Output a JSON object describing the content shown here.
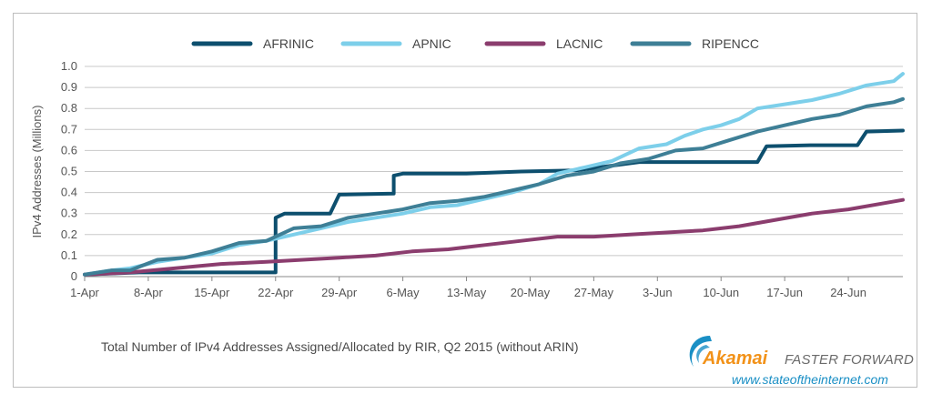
{
  "chart_data": {
    "type": "line",
    "ylabel": "IPv4 Addresses (Millions)",
    "xlabel": "",
    "ylim": [
      0,
      1.0
    ],
    "yticks": [
      "0",
      "0.1",
      "0.2",
      "0.3",
      "0.4",
      "0.5",
      "0.6",
      "0.7",
      "0.8",
      "0.9",
      "1.0"
    ],
    "xticks": [
      "1-Apr",
      "8-Apr",
      "15-Apr",
      "22-Apr",
      "29-Apr",
      "6-May",
      "13-May",
      "20-May",
      "27-May",
      "3-Jun",
      "10-Jun",
      "17-Jun",
      "24-Jun"
    ],
    "x_range_days": [
      0,
      90
    ],
    "grid": "horizontal",
    "legend_position": "top",
    "series": [
      {
        "name": "AFRINIC",
        "color": "#0d4f6e",
        "points": [
          [
            0,
            0.01
          ],
          [
            6,
            0.02
          ],
          [
            21,
            0.02
          ],
          [
            21,
            0.28
          ],
          [
            22,
            0.3
          ],
          [
            27,
            0.3
          ],
          [
            28,
            0.39
          ],
          [
            34,
            0.395
          ],
          [
            34,
            0.48
          ],
          [
            35,
            0.49
          ],
          [
            42,
            0.49
          ],
          [
            48,
            0.5
          ],
          [
            54,
            0.505
          ],
          [
            61,
            0.545
          ],
          [
            74,
            0.545
          ],
          [
            75,
            0.62
          ],
          [
            80,
            0.625
          ],
          [
            85,
            0.625
          ],
          [
            86,
            0.69
          ],
          [
            90,
            0.695
          ]
        ]
      },
      {
        "name": "APNIC",
        "color": "#7dcfea",
        "points": [
          [
            0,
            0.01
          ],
          [
            3,
            0.03
          ],
          [
            5,
            0.04
          ],
          [
            8,
            0.07
          ],
          [
            11,
            0.09
          ],
          [
            14,
            0.11
          ],
          [
            17,
            0.15
          ],
          [
            20,
            0.17
          ],
          [
            23,
            0.2
          ],
          [
            26,
            0.23
          ],
          [
            29,
            0.26
          ],
          [
            32,
            0.28
          ],
          [
            35,
            0.3
          ],
          [
            38,
            0.33
          ],
          [
            41,
            0.34
          ],
          [
            44,
            0.37
          ],
          [
            47,
            0.4
          ],
          [
            50,
            0.44
          ],
          [
            52,
            0.49
          ],
          [
            55,
            0.52
          ],
          [
            58,
            0.55
          ],
          [
            61,
            0.61
          ],
          [
            64,
            0.63
          ],
          [
            66,
            0.67
          ],
          [
            68,
            0.7
          ],
          [
            70,
            0.72
          ],
          [
            72,
            0.75
          ],
          [
            74,
            0.8
          ],
          [
            77,
            0.82
          ],
          [
            80,
            0.84
          ],
          [
            83,
            0.87
          ],
          [
            86,
            0.91
          ],
          [
            89,
            0.93
          ],
          [
            90,
            0.965
          ]
        ]
      },
      {
        "name": "LACNIC",
        "color": "#8b3d6e",
        "points": [
          [
            0,
            0.01
          ],
          [
            5,
            0.02
          ],
          [
            10,
            0.04
          ],
          [
            15,
            0.06
          ],
          [
            20,
            0.07
          ],
          [
            24,
            0.08
          ],
          [
            28,
            0.09
          ],
          [
            32,
            0.1
          ],
          [
            36,
            0.12
          ],
          [
            40,
            0.13
          ],
          [
            44,
            0.15
          ],
          [
            48,
            0.17
          ],
          [
            52,
            0.19
          ],
          [
            56,
            0.19
          ],
          [
            60,
            0.2
          ],
          [
            64,
            0.21
          ],
          [
            68,
            0.22
          ],
          [
            72,
            0.24
          ],
          [
            76,
            0.27
          ],
          [
            80,
            0.3
          ],
          [
            84,
            0.32
          ],
          [
            88,
            0.35
          ],
          [
            90,
            0.365
          ]
        ]
      },
      {
        "name": "RIPENCC",
        "color": "#3e7f96",
        "points": [
          [
            0,
            0.01
          ],
          [
            3,
            0.03
          ],
          [
            5,
            0.03
          ],
          [
            8,
            0.08
          ],
          [
            11,
            0.09
          ],
          [
            14,
            0.12
          ],
          [
            17,
            0.16
          ],
          [
            20,
            0.17
          ],
          [
            23,
            0.23
          ],
          [
            26,
            0.24
          ],
          [
            29,
            0.28
          ],
          [
            32,
            0.3
          ],
          [
            35,
            0.32
          ],
          [
            38,
            0.35
          ],
          [
            41,
            0.36
          ],
          [
            44,
            0.38
          ],
          [
            47,
            0.41
          ],
          [
            50,
            0.44
          ],
          [
            53,
            0.48
          ],
          [
            56,
            0.5
          ],
          [
            59,
            0.54
          ],
          [
            62,
            0.56
          ],
          [
            65,
            0.6
          ],
          [
            68,
            0.61
          ],
          [
            71,
            0.65
          ],
          [
            74,
            0.69
          ],
          [
            77,
            0.72
          ],
          [
            80,
            0.75
          ],
          [
            83,
            0.77
          ],
          [
            86,
            0.81
          ],
          [
            89,
            0.83
          ],
          [
            90,
            0.845
          ]
        ]
      }
    ]
  },
  "caption": "Total Number of IPv4 Addresses Assigned/Allocated by RIR, Q2 2015 (without ARIN)",
  "brand": {
    "name": "Akamai",
    "tagline": "FASTER FORWARD",
    "url": "www.stateoftheinternet.com",
    "swoosh_color": "#1a8fc5",
    "name_color": "#f29219"
  }
}
